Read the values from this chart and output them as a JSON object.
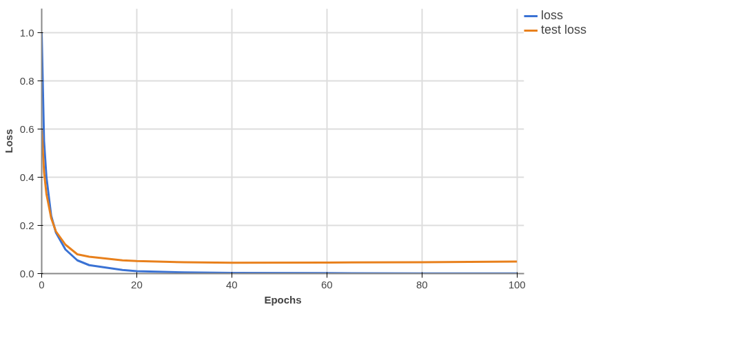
{
  "chart_data": {
    "type": "line",
    "xlabel": "Epochs",
    "ylabel": "Loss",
    "x": [
      0,
      0.5,
      1,
      2,
      3,
      5,
      7.5,
      10,
      17,
      20,
      30,
      40,
      60,
      80,
      100
    ],
    "series": [
      {
        "name": "loss",
        "color": "#3a72d4",
        "values": [
          1.0,
          0.55,
          0.4,
          0.24,
          0.17,
          0.1,
          0.055,
          0.035,
          0.015,
          0.01,
          0.005,
          0.003,
          0.002,
          0.001,
          0.001
        ]
      },
      {
        "name": "test loss",
        "color": "#e8801c",
        "values": [
          0.6,
          0.42,
          0.33,
          0.23,
          0.175,
          0.12,
          0.08,
          0.07,
          0.055,
          0.052,
          0.047,
          0.045,
          0.046,
          0.047,
          0.05
        ]
      }
    ],
    "xlim": [
      0,
      101.5
    ],
    "ylim": [
      0,
      1.1
    ],
    "xticks": [
      0,
      20,
      40,
      60,
      80,
      100
    ],
    "yticks": [
      {
        "value": 0,
        "label": "0.0"
      },
      0.2,
      0.4,
      0.6,
      0.8,
      {
        "value": 1,
        "label": "1.0"
      }
    ],
    "grid": true,
    "legend": "top right",
    "marker": "none",
    "line_style": "solid"
  }
}
